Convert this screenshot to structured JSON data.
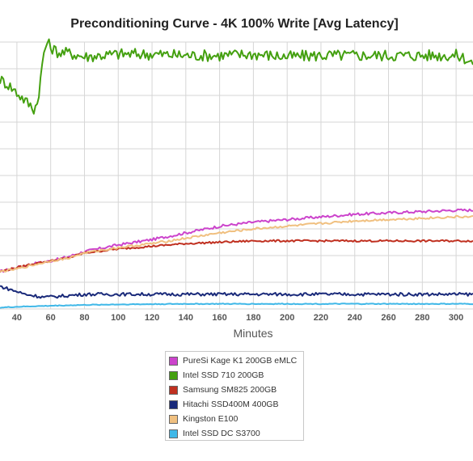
{
  "chart_data": {
    "type": "line",
    "title": "Preconditioning Curve - 4K 100% Write [Avg Latency]",
    "xlabel": "Minutes",
    "ylabel": "",
    "x_ticks": [
      40,
      60,
      80,
      100,
      120,
      140,
      160,
      180,
      200,
      220,
      240,
      260,
      280,
      300
    ],
    "xlim": [
      30,
      310
    ],
    "ylim": [
      0,
      100
    ],
    "grid": true,
    "legend_position": "bottom",
    "series": [
      {
        "name": "PureSi Kage K1 200GB eMLC",
        "color": "#cc44cc",
        "x": [
          30,
          40,
          50,
          60,
          70,
          80,
          100,
          120,
          140,
          160,
          180,
          200,
          220,
          240,
          260,
          280,
          300,
          310
        ],
        "values": [
          14,
          15.5,
          17,
          18,
          19.5,
          21.5,
          24,
          26,
          28.5,
          31,
          32.5,
          33.5,
          34.5,
          35.5,
          36,
          36.5,
          37,
          37
        ]
      },
      {
        "name": "Intel SSD 710 200GB",
        "color": "#44a010",
        "x": [
          30,
          35,
          40,
          45,
          50,
          52,
          54,
          56,
          58,
          60,
          65,
          70,
          80,
          100,
          120,
          140,
          160,
          180,
          200,
          220,
          240,
          260,
          280,
          300,
          305,
          310
        ],
        "values": [
          86,
          84,
          81,
          78,
          75,
          77,
          86,
          96,
          100,
          98,
          96,
          96,
          94.5,
          95.5,
          95.5,
          95,
          95,
          95.5,
          94.5,
          95,
          95,
          95,
          95,
          95,
          94,
          92
        ]
      },
      {
        "name": "Samsung SM825 200GB",
        "color": "#c03020",
        "x": [
          30,
          40,
          50,
          60,
          70,
          80,
          100,
          120,
          140,
          160,
          180,
          200,
          220,
          240,
          260,
          280,
          300,
          310
        ],
        "values": [
          14,
          15.5,
          17,
          18,
          19,
          21,
          22.5,
          23.5,
          24.5,
          25,
          25.5,
          25.5,
          25.5,
          25.5,
          25.5,
          25.5,
          25.5,
          25.5
        ]
      },
      {
        "name": "Hitachi SSD400M 400GB",
        "color": "#1a2a7a",
        "x": [
          30,
          35,
          40,
          45,
          50,
          55,
          60,
          70,
          80,
          100,
          120,
          140,
          160,
          180,
          200,
          220,
          240,
          260,
          280,
          300,
          310
        ],
        "values": [
          8.5,
          7.5,
          6.5,
          5.5,
          5,
          4.5,
          4.5,
          5,
          5.5,
          5.5,
          5.5,
          5.5,
          5.5,
          5.5,
          5.5,
          5.5,
          5.5,
          5.5,
          5.5,
          5.5,
          5.5
        ]
      },
      {
        "name": "Kingston E100",
        "color": "#f0c080",
        "x": [
          30,
          40,
          50,
          60,
          70,
          80,
          100,
          120,
          140,
          160,
          180,
          200,
          220,
          240,
          260,
          280,
          300,
          310
        ],
        "values": [
          14,
          15,
          16.5,
          18,
          19,
          21,
          23,
          24.5,
          26.5,
          28.5,
          30,
          31,
          32,
          33,
          33.5,
          34,
          34.5,
          34.5
        ]
      },
      {
        "name": "Intel SSD DC S3700",
        "color": "#40b8e8",
        "x": [
          30,
          40,
          50,
          60,
          80,
          100,
          120,
          140,
          160,
          180,
          200,
          220,
          240,
          260,
          280,
          300,
          310
        ],
        "values": [
          0.5,
          0.8,
          1,
          1.2,
          1.5,
          1.7,
          1.8,
          1.9,
          1.9,
          1.9,
          1.9,
          1.9,
          1.9,
          1.9,
          1.9,
          1.9,
          1.9
        ]
      }
    ]
  }
}
